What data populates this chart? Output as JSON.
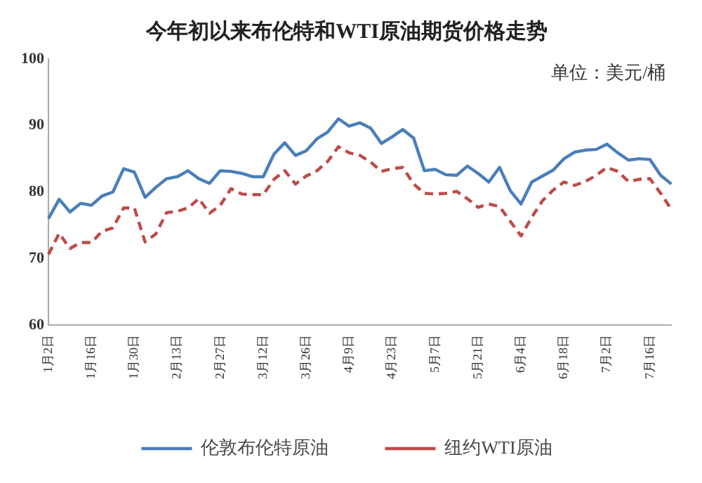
{
  "chart_data": {
    "type": "line",
    "title": "今年初以来布伦特和WTI原油期货价格走势",
    "annotations": [
      "单位：美元/桶"
    ],
    "categories": [
      "1月2日",
      null,
      null,
      null,
      "1月16日",
      null,
      null,
      null,
      "1月30日",
      null,
      null,
      null,
      "2月13日",
      null,
      null,
      null,
      "2月27日",
      null,
      null,
      null,
      "3月12日",
      null,
      null,
      null,
      "3月26日",
      null,
      null,
      null,
      "4月9日",
      null,
      null,
      null,
      "4月23日",
      null,
      null,
      null,
      "5月7日",
      null,
      null,
      null,
      "5月21日",
      null,
      null,
      null,
      "6月4日",
      null,
      null,
      null,
      "6月18日",
      null,
      null,
      null,
      "7月2日",
      null,
      null,
      null,
      "7月16日",
      null,
      null
    ],
    "series": [
      {
        "name": "伦敦布伦特原油",
        "color": "#4a7ebb",
        "line_style": "solid",
        "values": [
          76,
          78.9,
          77,
          78.3,
          78,
          79.4,
          80,
          83.5,
          83,
          79.2,
          80.7,
          82,
          82.3,
          83.2,
          82,
          81.3,
          83.2,
          83.1,
          82.8,
          82.3,
          82.3,
          85.7,
          87.4,
          85.5,
          86.2,
          88,
          89,
          91,
          89.9,
          90.4,
          89.6,
          87.3,
          88.3,
          89.4,
          88.1,
          83.2,
          83.4,
          82.6,
          82.5,
          83.9,
          82.8,
          81.5,
          83.7,
          80.2,
          78.2,
          81.5,
          82.4,
          83.3,
          85,
          86,
          86.3,
          86.4,
          87.2,
          85.9,
          84.8,
          85,
          84.9,
          82.5,
          81.2
        ]
      },
      {
        "name": "纽约WTI原油",
        "color": "#be4b48",
        "line_style": "dashed",
        "values": [
          70.6,
          73.8,
          71.5,
          72.4,
          72.4,
          74.1,
          74.6,
          77.6,
          77.6,
          72.5,
          73.7,
          76.9,
          77.1,
          77.6,
          79,
          76.8,
          78,
          80.5,
          79.7,
          79.6,
          79.6,
          81.9,
          83.2,
          81.2,
          82.4,
          83.2,
          84.6,
          86.8,
          85.9,
          85.5,
          84.5,
          83.1,
          83.5,
          83.7,
          81.2,
          79.8,
          79.7,
          79.8,
          80.1,
          79,
          77.7,
          78.2,
          77.8,
          75.6,
          73.4,
          76.2,
          78.7,
          80.3,
          81.5,
          81,
          81.6,
          82.5,
          83.7,
          83.1,
          81.6,
          81.9,
          82,
          79.8,
          77.4
        ]
      }
    ],
    "ylim": [
      60,
      100
    ],
    "yticks": [
      60,
      70,
      80,
      90,
      100
    ],
    "grid": false,
    "legend": "bottom",
    "marker": "none"
  }
}
